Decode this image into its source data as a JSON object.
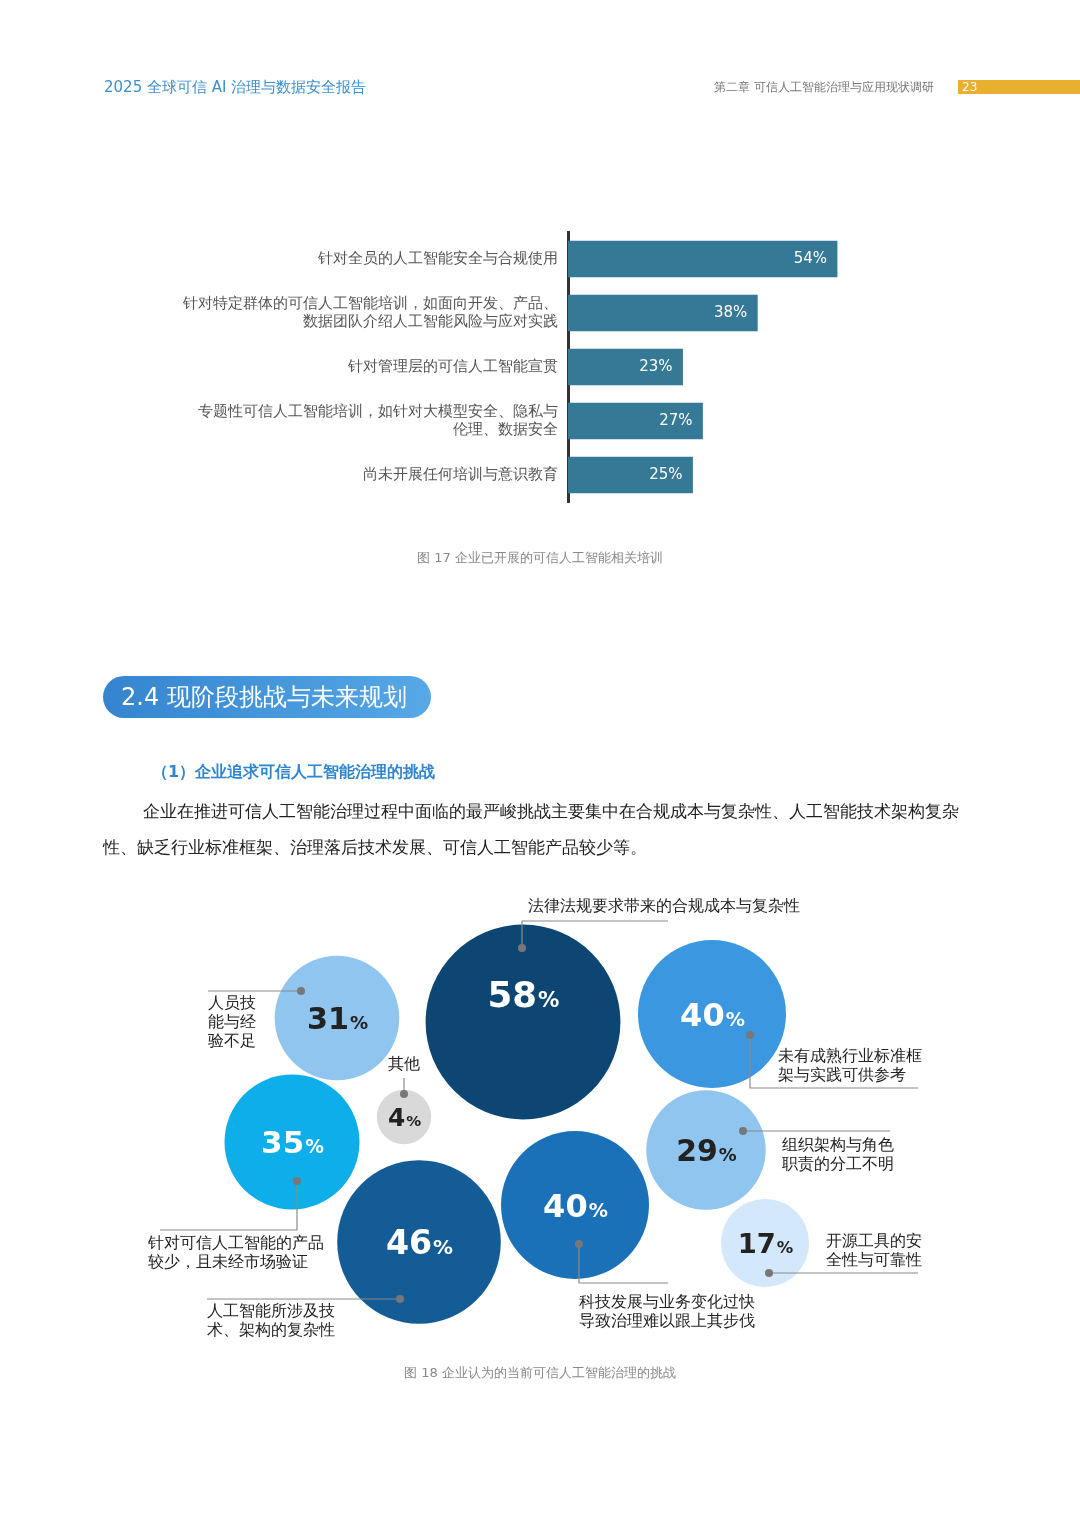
{
  "chart_data": [
    {
      "type": "bar",
      "orientation": "horizontal",
      "categories": [
        "针对全员的人工智能安全与合规使用",
        "针对特定群体的可信人工智能培训，如面向开发、产品、数据团队介绍人工智能风险与应对实践",
        "针对管理层的可信人工智能宣贯",
        "专题性可信人工智能培训，如针对大模型安全、隐私与伦理、数据安全",
        "尚未开展任何培训与意识教育"
      ],
      "values": [
        54,
        38,
        23,
        27,
        25
      ],
      "value_labels": [
        "54%",
        "38%",
        "23%",
        "27%",
        "25%"
      ],
      "color": "#357997",
      "tick_labels": "y",
      "legend": false,
      "annotations": [
        "2025 全球可信 AI 治理与数据安全报告",
        "第二章  可信人工智能治理与应用现状调研",
        "23",
        "图 17 企业已开展的可信人工智能相关培训"
      ]
    },
    {
      "type": "other",
      "categories": [
        "法律法规要求带来的合规成本与复杂性",
        "人工智能所涉及技术、架构的复杂性",
        "未有成熟行业标准框架与实践可供参考",
        "科技发展与业务变化过快导致治理难以跟上其步伐",
        "针对可信人工智能的产品较少，且未经市场验证",
        "人员技能与经验不足",
        "组织架构与角色职责的分工不明",
        "开源工具的安全性与可靠性",
        "其他"
      ],
      "values": [
        58,
        46,
        40,
        40,
        35,
        31,
        29,
        17,
        4
      ],
      "value_labels": [
        "58%",
        "46%",
        "40%",
        "40%",
        "35%",
        "31%",
        "29%",
        "17%",
        "4%"
      ],
      "colors": [
        "#0d4673",
        "#135c96",
        "#3a97e0",
        "#1a71b7",
        "#0daee9",
        "#8fc5ef",
        "#8fc5ef",
        "#d3e9fb",
        "#d9d9d9"
      ],
      "legend": false,
      "annotations": [
        "2.4 现阶段挑战与未来规划",
        "（1）企业追求可信人工智能治理的挑战",
        "企业在推进可信人工智能治理过程中面临的最严峻挑战主要集中在合规成本与复杂性、人工智能技术架构复杂性、缺乏行业标准框架、治理落后技术发展、可信人工智能产品较少等。",
        "图 18 企业认为的当前可信人工智能治理的挑战"
      ]
    }
  ]
}
